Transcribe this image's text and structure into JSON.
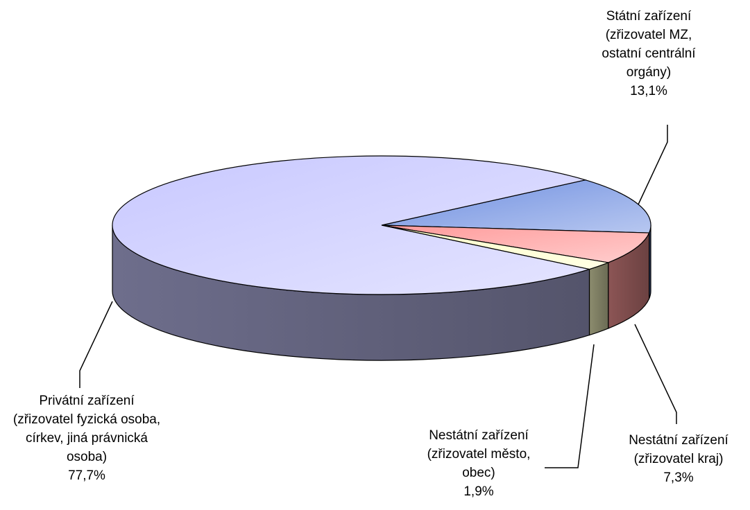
{
  "chart_data": {
    "type": "pie",
    "categories": [
      "Státní zařízení (zřizovatel MZ, ostatní centrální orgány)",
      "Nestátní zařízení (zřizovatel kraj)",
      "Nestátní zařízení (zřizovatel město, obec)",
      "Privátní zařízení (zřizovatel fyzická osoba, církev, jiná právnická osoba)"
    ],
    "values": [
      13.1,
      7.3,
      1.9,
      77.7
    ],
    "value_labels": [
      "13,1%",
      "7,3%",
      "1,9%",
      "77,7%"
    ],
    "colors": [
      "#6f8fe0",
      "#ff9a9a",
      "#ffffc8",
      "#c8c8ff"
    ]
  }
}
